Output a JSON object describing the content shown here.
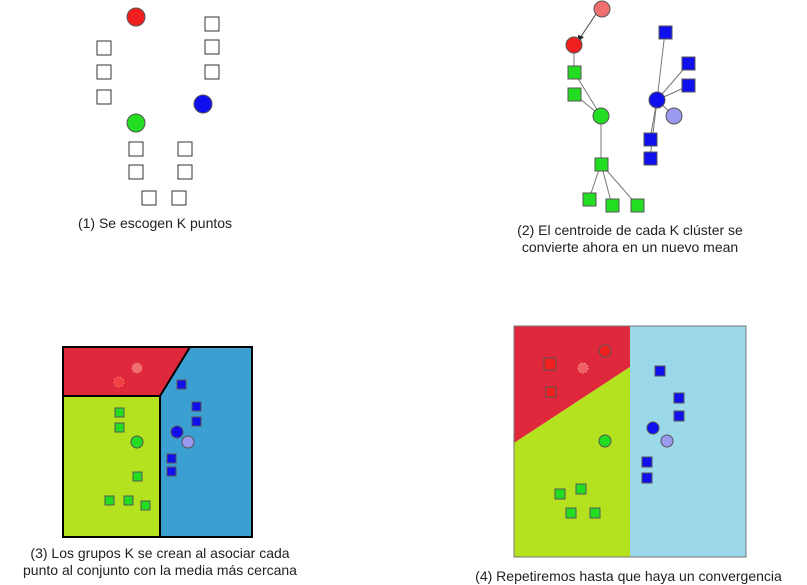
{
  "panels": [
    {
      "id": "p1",
      "caption_lines": [
        "(1) Se escogen K puntos"
      ]
    },
    {
      "id": "p2",
      "caption_lines": [
        "(2) El centroide de cada K clúster se",
        "convierte ahora en un nuevo mean"
      ]
    },
    {
      "id": "p3",
      "caption_lines": [
        "(3) Los grupos K se crean al asociar cada",
        "punto al conjunto con la media más cercana"
      ]
    },
    {
      "id": "p4",
      "caption_lines": [
        "(4) Repetiremos hasta que haya un convergencia"
      ]
    }
  ],
  "colors": {
    "red": "#f02020",
    "red_light": "#f07070",
    "green": "#22dd22",
    "blue": "#1010ee",
    "blue_light": "#9a9aee",
    "region_red": "#e0283c",
    "region_green": "#b4e21e",
    "region_blue": "#3b9fd2",
    "region_blue_light": "#9ad8ea",
    "line": "#777777"
  }
}
